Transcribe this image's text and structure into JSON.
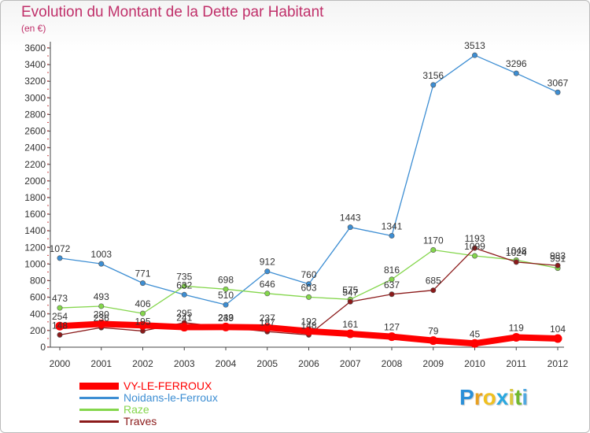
{
  "chart_data": {
    "type": "line",
    "title": "Evolution du Montant de la Dette par Habitant",
    "unit_label": "(en €)",
    "xlabel": "",
    "ylabel": "",
    "ylim": [
      0,
      3600
    ],
    "ytick_step": 200,
    "grid": false,
    "legend_position": "bottom-left",
    "categories": [
      "2000",
      "2001",
      "2002",
      "2003",
      "2004",
      "2005",
      "2006",
      "2007",
      "2008",
      "2009",
      "2010",
      "2011",
      "2012"
    ],
    "series": [
      {
        "name": "VY-LE-FERROUX",
        "color": "#ff0000",
        "values": [
          254,
          280,
          263,
          241,
          243,
          237,
          192,
          161,
          127,
          79,
          45,
          119,
          104
        ],
        "labels": [
          "254",
          "280",
          "",
          "241",
          "243",
          "237",
          "192",
          "161",
          "127",
          "79",
          "45",
          "119",
          "104"
        ]
      },
      {
        "name": "Noidans-le-Ferroux",
        "color": "#3d8ed3",
        "values": [
          1072,
          1003,
          771,
          632,
          510,
          912,
          760,
          1443,
          1341,
          3156,
          3513,
          3296,
          3067
        ],
        "labels": [
          "1072",
          "1003",
          "771",
          "632",
          "510",
          "912",
          "760",
          "1443",
          "1341",
          "3156",
          "3513",
          "3296",
          "3067"
        ]
      },
      {
        "name": "Raze",
        "color": "#84d64c",
        "values": [
          473,
          493,
          406,
          735,
          698,
          646,
          603,
          575,
          816,
          1170,
          1099,
          1048,
          951
        ],
        "labels": [
          "473",
          "493",
          "406",
          "735",
          "698",
          "646",
          "603",
          "575",
          "816",
          "1170",
          "1099",
          "1048",
          "951"
        ]
      },
      {
        "name": "Traves",
        "color": "#8b1a1a",
        "values": [
          148,
          236,
          195,
          295,
          239,
          187,
          148,
          547,
          637,
          685,
          1193,
          1024,
          983
        ],
        "labels": [
          "148",
          "236",
          "195",
          "295",
          "239",
          "187",
          "148",
          "547",
          "637",
          "685",
          "1193",
          "1024",
          "983"
        ]
      }
    ]
  },
  "brand": {
    "letters": [
      "P",
      "r",
      "o",
      "x",
      "i",
      "t",
      "i"
    ],
    "colors": [
      "#2a8fd8",
      "#e8a020",
      "#f0c020",
      "#2aa8e0",
      "#d8c840",
      "#70b830",
      "#50a8e0"
    ]
  }
}
